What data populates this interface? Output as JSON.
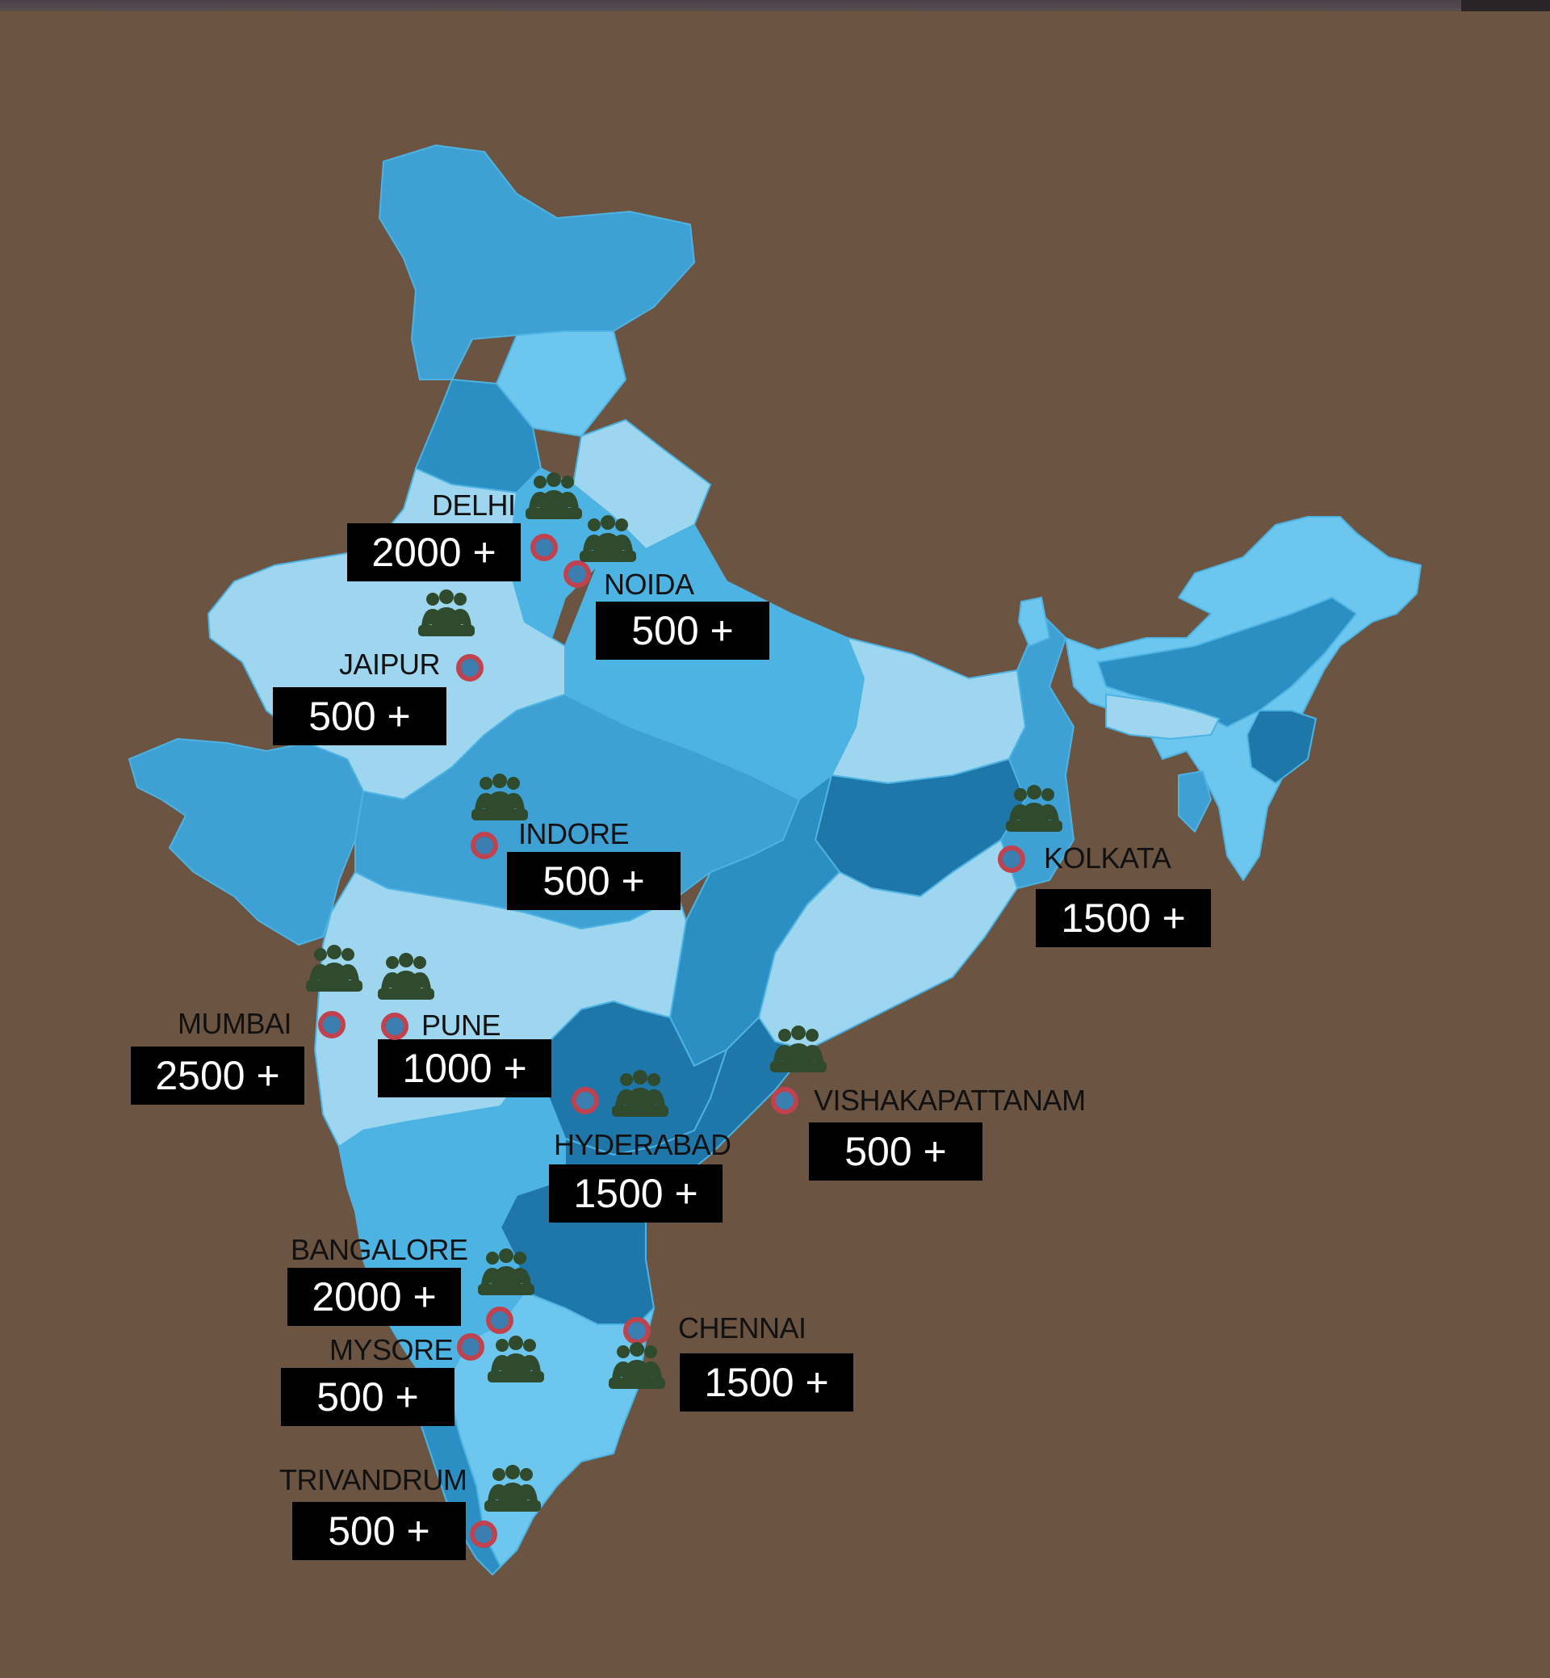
{
  "map": {
    "colors": {
      "background": "#6b5442",
      "shade_light": "#9ed6ef",
      "shade_sky": "#6cc6ee",
      "shade_mid": "#4db3e2",
      "shade_blue": "#3ea0d3",
      "shade_deep": "#2c8fc4",
      "shade_dark": "#1f76a9",
      "marker_ring": "#c0424f",
      "people_icon": "#2f4a2c"
    },
    "cities": [
      {
        "key": "delhi",
        "name": "DELHI",
        "count": "2000 +"
      },
      {
        "key": "noida",
        "name": "NOIDA",
        "count": "500 +"
      },
      {
        "key": "jaipur",
        "name": "JAIPUR",
        "count": "500 +"
      },
      {
        "key": "indore",
        "name": "INDORE",
        "count": "500 +"
      },
      {
        "key": "kolkata",
        "name": "KOLKATA",
        "count": "1500 +"
      },
      {
        "key": "mumbai",
        "name": "MUMBAI",
        "count": "2500 +"
      },
      {
        "key": "pune",
        "name": "PUNE",
        "count": "1000 +"
      },
      {
        "key": "hyderabad",
        "name": "HYDERABAD",
        "count": "1500 +"
      },
      {
        "key": "vishakapattanam",
        "name": "VISHAKAPATTANAM",
        "count": "500 +"
      },
      {
        "key": "bangalore",
        "name": "BANGALORE",
        "count": "2000 +"
      },
      {
        "key": "mysore",
        "name": "MYSORE",
        "count": "500 +"
      },
      {
        "key": "chennai",
        "name": "CHENNAI",
        "count": "1500 +"
      },
      {
        "key": "trivandrum",
        "name": "TRIVANDRUM",
        "count": "500 +"
      }
    ]
  }
}
